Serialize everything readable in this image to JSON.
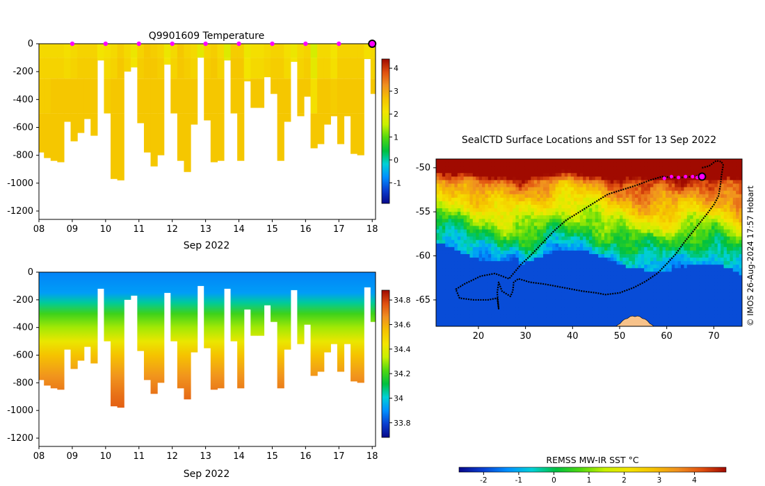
{
  "colors": {
    "temp_scale": [
      "#08088a",
      "#0a3fd0",
      "#0090ff",
      "#00d0d8",
      "#00c040",
      "#50d810",
      "#c8f000",
      "#f4e400",
      "#f5c200",
      "#f09020",
      "#e05010",
      "#a00a00"
    ],
    "sal_scale": [
      "#08088a",
      "#0a3fd0",
      "#0090ff",
      "#00d0d8",
      "#00c040",
      "#50d810",
      "#c8f000",
      "#f4e400",
      "#f5c200",
      "#f09020",
      "#e05010",
      "#a00a00"
    ],
    "sst_scale": [
      "#08088a",
      "#0a3fd0",
      "#0090ff",
      "#00d0d8",
      "#00c040",
      "#50d810",
      "#c8f000",
      "#f4e400",
      "#f5c200",
      "#f09020",
      "#e05010",
      "#a00a00"
    ],
    "profile_marker": "#ff00ff",
    "track": "#000000",
    "land": "#f7c28a"
  },
  "chart_data": [
    {
      "id": "temperature",
      "type": "heatmap",
      "title": "Q9901609  Temperature",
      "xlabel": "Sep 2022",
      "ylabel": "",
      "x_ticks": [
        "08",
        "09",
        "10",
        "11",
        "12",
        "13",
        "14",
        "15",
        "16",
        "17",
        "18"
      ],
      "x_range": [
        8,
        18.1
      ],
      "y_ticks": [
        "0",
        "-200",
        "-400",
        "-600",
        "-800",
        "-1000",
        "-1200"
      ],
      "y_range": [
        -1260,
        0
      ],
      "profile_marker_days": [
        9,
        10,
        11,
        12,
        13,
        14,
        15,
        16,
        17
      ],
      "current_profile_day": 18,
      "colorbar_ticks": [
        "-1",
        "0",
        "1",
        "2",
        "3",
        "4"
      ],
      "colorbar_range": [
        -1.9,
        4.4
      ],
      "profile_days": [
        8.05,
        8.25,
        8.45,
        8.65,
        8.85,
        9.05,
        9.25,
        9.45,
        9.65,
        9.85,
        10.05,
        10.25,
        10.45,
        10.65,
        10.85,
        11.05,
        11.25,
        11.45,
        11.65,
        11.85,
        12.05,
        12.25,
        12.45,
        12.65,
        12.85,
        13.05,
        13.25,
        13.45,
        13.65,
        13.85,
        14.05,
        14.25,
        14.45,
        14.65,
        14.85,
        15.05,
        15.25,
        15.45,
        15.65,
        15.85,
        16.05,
        16.25,
        16.45,
        16.65,
        16.85,
        17.05,
        17.25,
        17.45,
        17.65,
        17.85,
        18.05
      ],
      "profile_max_depth": [
        780,
        820,
        840,
        850,
        560,
        700,
        640,
        540,
        660,
        120,
        500,
        970,
        980,
        200,
        170,
        570,
        780,
        880,
        800,
        150,
        500,
        840,
        920,
        580,
        100,
        550,
        850,
        840,
        120,
        500,
        840,
        270,
        460,
        460,
        240,
        360,
        840,
        560,
        130,
        520,
        380,
        750,
        720,
        580,
        520,
        720,
        520,
        790,
        800,
        110,
        360
      ],
      "values": [
        [
          2.3,
          2.3,
          2.3,
          2.3,
          2.2,
          2.3,
          2.4,
          2.4,
          2.4,
          2.1,
          2.2,
          2.3,
          2.5,
          2.3,
          2.0,
          2.4,
          2.6,
          2.5,
          2.4,
          2.0,
          2.3,
          2.6,
          2.4,
          2.3,
          1.9,
          2.4,
          2.5,
          2.3,
          1.8,
          2.5,
          2.5,
          2.0,
          2.2,
          2.2,
          2.3,
          2.4,
          2.4,
          2.2,
          2.0,
          2.3,
          2.4,
          1.7,
          2.3,
          2.3,
          2.1,
          2.4,
          2.4,
          2.4,
          2.4,
          2.2,
          2.3
        ],
        [
          2.4,
          2.4,
          2.4,
          2.4,
          2.3,
          2.4,
          2.5,
          2.5,
          2.5,
          2.2,
          2.3,
          2.4,
          2.6,
          2.4,
          2.1,
          2.5,
          2.6,
          2.6,
          2.5,
          2.1,
          2.4,
          2.6,
          2.5,
          2.4,
          2.0,
          2.5,
          2.6,
          2.4,
          1.9,
          2.6,
          2.6,
          2.1,
          2.3,
          2.3,
          2.4,
          2.5,
          2.5,
          2.3,
          2.1,
          2.4,
          2.5,
          1.9,
          2.4,
          2.4,
          2.2,
          2.5,
          2.5,
          2.5,
          2.5,
          2.3,
          2.4
        ],
        [
          2.5,
          2.5,
          2.6,
          2.6,
          2.6,
          2.6,
          2.6,
          2.6,
          2.6,
          2.4,
          2.5,
          2.6,
          2.6,
          2.6,
          2.4,
          2.6,
          2.6,
          2.6,
          2.6,
          2.3,
          2.6,
          2.6,
          2.6,
          2.6,
          2.3,
          2.6,
          2.6,
          2.6,
          2.2,
          2.6,
          2.6,
          2.4,
          2.6,
          2.6,
          2.6,
          2.6,
          2.6,
          2.6,
          2.4,
          2.6,
          2.6,
          2.2,
          2.6,
          2.6,
          2.5,
          2.6,
          2.6,
          2.6,
          2.6,
          2.5,
          2.6
        ],
        [
          2.6,
          2.6,
          2.6,
          2.6,
          2.6,
          2.6,
          2.6,
          2.6,
          2.6,
          2.6,
          2.6,
          2.6,
          2.6,
          2.6,
          2.6,
          2.6,
          2.6,
          2.6,
          2.6,
          2.6,
          2.6,
          2.6,
          2.6,
          2.6,
          2.6,
          2.6,
          2.6,
          2.6,
          2.6,
          2.6,
          2.6,
          2.6,
          2.6,
          2.6,
          2.6,
          2.6,
          2.6,
          2.6,
          2.6,
          2.6,
          2.6,
          2.6,
          2.6,
          2.6,
          2.6,
          2.6,
          2.6,
          2.6,
          2.6,
          2.6,
          2.6
        ]
      ],
      "value_depths": [
        0,
        100,
        250,
        500
      ]
    },
    {
      "id": "salinity",
      "type": "heatmap",
      "title": "",
      "xlabel": "Sep 2022",
      "ylabel": "",
      "x_ticks": [
        "08",
        "09",
        "10",
        "11",
        "12",
        "13",
        "14",
        "15",
        "16",
        "17",
        "18"
      ],
      "x_range": [
        8,
        18.1
      ],
      "y_ticks": [
        "0",
        "-200",
        "-400",
        "-600",
        "-800",
        "-1000",
        "-1200"
      ],
      "y_range": [
        -1260,
        0
      ],
      "colorbar_ticks": [
        "33.8",
        "34",
        "34.2",
        "34.4",
        "34.6",
        "34.8"
      ],
      "colorbar_range": [
        33.68,
        34.88
      ],
      "values_depth_profile": [
        {
          "depth": 0,
          "value": 33.88
        },
        {
          "depth": 150,
          "value": 33.92
        },
        {
          "depth": 220,
          "value": 34.05
        },
        {
          "depth": 300,
          "value": 34.2
        },
        {
          "depth": 400,
          "value": 34.3
        },
        {
          "depth": 500,
          "value": 34.42
        },
        {
          "depth": 600,
          "value": 34.55
        },
        {
          "depth": 750,
          "value": 34.65
        },
        {
          "depth": 900,
          "value": 34.72
        },
        {
          "depth": 1000,
          "value": 34.75
        }
      ]
    },
    {
      "id": "map",
      "type": "heatmap",
      "title": "SealCTD Surface Locations and SST for 13 Sep 2022",
      "xlabel": "",
      "ylabel": "",
      "x_ticks": [
        "20",
        "30",
        "40",
        "50",
        "60",
        "70"
      ],
      "x_range": [
        11,
        76
      ],
      "y_ticks": [
        "-50",
        "-55",
        "-60",
        "-65"
      ],
      "y_range": [
        -68,
        -49
      ],
      "colorbar_title": "REMSS MW-IR SST °C",
      "colorbar_ticks": [
        "-2",
        "-1",
        "0",
        "1",
        "2",
        "3",
        "4"
      ],
      "colorbar_range": [
        -2.7,
        4.9
      ],
      "track": [
        [
          67.5,
          -50.0
        ],
        [
          69,
          -49.8
        ],
        [
          70.5,
          -49.2
        ],
        [
          71.6,
          -49.3
        ],
        [
          72.0,
          -49.7
        ],
        [
          71.8,
          -50.3
        ],
        [
          71.6,
          -51
        ],
        [
          71.4,
          -52
        ],
        [
          71.0,
          -53.2
        ],
        [
          70.0,
          -54.2
        ],
        [
          68.6,
          -55.2
        ],
        [
          67.1,
          -56.2
        ],
        [
          65.5,
          -57.3
        ],
        [
          63.8,
          -58.4
        ],
        [
          61.9,
          -59.8
        ],
        [
          60.0,
          -60.9
        ],
        [
          58.0,
          -62.0
        ],
        [
          55.5,
          -62.9
        ],
        [
          53.0,
          -63.6
        ],
        [
          50.0,
          -64.2
        ],
        [
          47.0,
          -64.4
        ],
        [
          45.0,
          -64.2
        ],
        [
          42.0,
          -64.0
        ],
        [
          38.0,
          -63.6
        ],
        [
          34.0,
          -63.2
        ],
        [
          31.0,
          -63.0
        ],
        [
          28.5,
          -62.6
        ],
        [
          27.5,
          -63.0
        ],
        [
          27.3,
          -64.0
        ],
        [
          26.8,
          -64.6
        ],
        [
          25.0,
          -64.0
        ],
        [
          24.3,
          -63.0
        ],
        [
          24.0,
          -64.2
        ],
        [
          24.3,
          -66.0
        ],
        [
          24.0,
          -64.8
        ],
        [
          22.0,
          -65.0
        ],
        [
          19.0,
          -65.0
        ],
        [
          16.0,
          -64.8
        ],
        [
          15.2,
          -63.8
        ],
        [
          17.0,
          -63.2
        ],
        [
          20.5,
          -62.3
        ],
        [
          23.5,
          -62.0
        ],
        [
          26.5,
          -62.6
        ],
        [
          29.0,
          -61.0
        ],
        [
          31.0,
          -60.0
        ],
        [
          33.5,
          -58.6
        ],
        [
          36.0,
          -57.2
        ],
        [
          38.5,
          -56.0
        ],
        [
          41.5,
          -55.0
        ],
        [
          44.5,
          -54.0
        ],
        [
          47.5,
          -53.0
        ],
        [
          50.5,
          -52.5
        ],
        [
          53.5,
          -52.0
        ],
        [
          56.5,
          -51.4
        ],
        [
          59.0,
          -51.0
        ],
        [
          61.0,
          -51.1
        ],
        [
          63.0,
          -51.1
        ],
        [
          65.5,
          -51.0
        ],
        [
          67.5,
          -50.8
        ]
      ],
      "recent_positions": [
        [
          59.5,
          -51.2
        ],
        [
          61.0,
          -51.0
        ],
        [
          62.5,
          -51.1
        ],
        [
          64.0,
          -51.0
        ],
        [
          65.5,
          -51.0
        ],
        [
          66.5,
          -51.1
        ]
      ],
      "current_position": [
        67.5,
        -51.0
      ],
      "land_patch": {
        "lon_range": [
          48.5,
          58.0
        ],
        "lat_top": -66.8,
        "label": ""
      }
    }
  ],
  "watermark": "© IMOS 26-Aug-2024 17:57 Hobart"
}
